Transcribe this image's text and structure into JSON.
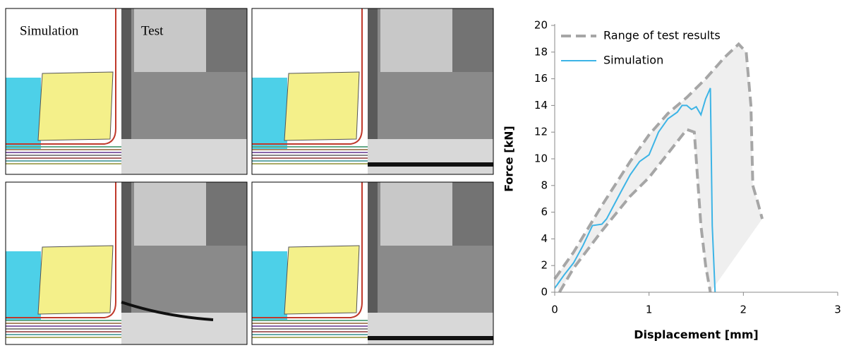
{
  "panel_labels": {
    "simulation": "Simulation",
    "test": "Test"
  },
  "chart_data": {
    "type": "line",
    "x_label": "Displacement [mm]",
    "y_label": "Force [kN]",
    "xlim": [
      0,
      3
    ],
    "xticks": [
      0,
      1,
      2,
      3
    ],
    "ylim": [
      0,
      20
    ],
    "yticks": [
      0,
      2,
      4,
      6,
      8,
      10,
      12,
      14,
      16,
      18,
      20
    ],
    "legend": "top-left",
    "series": [
      {
        "name": "Range of test results",
        "color": "#a6a6a6",
        "style": "dashed",
        "fill": "#efefef",
        "bounds": [
          {
            "x": [
              0,
              0.2,
              0.5,
              0.8,
              1.0,
              1.2,
              1.4,
              1.6,
              1.8,
              1.95,
              2.03,
              2.08,
              2.1,
              2.15,
              2.2
            ],
            "values": [
              1,
              3,
              6.5,
              9.8,
              11.8,
              13.4,
              14.6,
              16,
              17.6,
              18.6,
              18,
              14,
              8,
              6.8,
              5.5
            ]
          },
          {
            "x": [
              0.05,
              0.2,
              0.5,
              0.8,
              1.0,
              1.2,
              1.4,
              1.48,
              1.52,
              1.55,
              1.6,
              1.65
            ],
            "values": [
              0,
              1.8,
              4.6,
              7.2,
              8.6,
              10.4,
              12.2,
              12,
              8,
              5,
              2,
              0
            ]
          }
        ]
      },
      {
        "name": "Simulation",
        "color": "#3cb4e6",
        "style": "solid",
        "x": [
          0,
          0.05,
          0.1,
          0.2,
          0.3,
          0.4,
          0.5,
          0.55,
          0.7,
          0.8,
          0.9,
          1.0,
          1.1,
          1.2,
          1.3,
          1.35,
          1.4,
          1.45,
          1.5,
          1.55,
          1.6,
          1.65,
          1.67,
          1.7
        ],
        "values": [
          0.3,
          0.8,
          1.3,
          2.2,
          3.5,
          5,
          5.1,
          5.5,
          7.5,
          8.8,
          9.8,
          10.3,
          12,
          13,
          13.5,
          14,
          14,
          13.7,
          13.9,
          13.3,
          14.5,
          15.3,
          5,
          0
        ]
      }
    ]
  }
}
